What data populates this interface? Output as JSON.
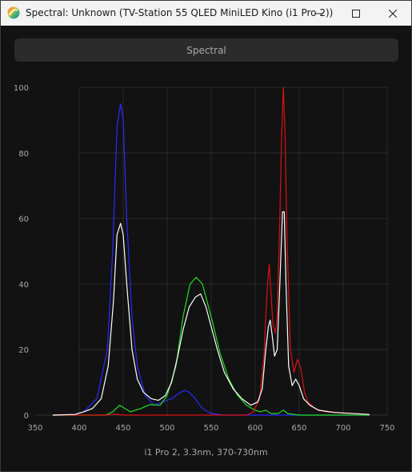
{
  "window": {
    "title": "Spectral: Unknown (TV-Station 55 QLED MiniLED Kino (i1 Pro 2))",
    "controls": [
      "minimize",
      "maximize",
      "close"
    ]
  },
  "toolbar": {
    "spectral_label": "Spectral"
  },
  "caption": "i1 Pro 2, 3.3nm, 370-730nm",
  "chart_data": {
    "type": "line",
    "xlim": [
      350,
      750
    ],
    "ylim": [
      0,
      100
    ],
    "x_ticks": [
      350,
      400,
      450,
      500,
      550,
      600,
      650,
      700,
      750
    ],
    "y_ticks": [
      0,
      20,
      40,
      60,
      80,
      100
    ],
    "grid": true,
    "series": [
      {
        "color": "#2a2aff",
        "points": [
          [
            370,
            0
          ],
          [
            395,
            0.2
          ],
          [
            405,
            1
          ],
          [
            420,
            5
          ],
          [
            432,
            20
          ],
          [
            438,
            50
          ],
          [
            443,
            88
          ],
          [
            447,
            95
          ],
          [
            450,
            90
          ],
          [
            454,
            60
          ],
          [
            460,
            30
          ],
          [
            466,
            15
          ],
          [
            475,
            6
          ],
          [
            485,
            3
          ],
          [
            495,
            4
          ],
          [
            505,
            5
          ],
          [
            515,
            7
          ],
          [
            520,
            7.5
          ],
          [
            525,
            7
          ],
          [
            532,
            5
          ],
          [
            540,
            2
          ],
          [
            550,
            0.5
          ],
          [
            565,
            0
          ],
          [
            730,
            0
          ]
        ]
      },
      {
        "color": "#22dd22",
        "points": [
          [
            370,
            0
          ],
          [
            430,
            0
          ],
          [
            438,
            1
          ],
          [
            446,
            3
          ],
          [
            452,
            2
          ],
          [
            458,
            1
          ],
          [
            470,
            2
          ],
          [
            480,
            3.2
          ],
          [
            492,
            3
          ],
          [
            500,
            6
          ],
          [
            510,
            15
          ],
          [
            518,
            30
          ],
          [
            526,
            40
          ],
          [
            533,
            42
          ],
          [
            540,
            40
          ],
          [
            550,
            30
          ],
          [
            560,
            19
          ],
          [
            570,
            11
          ],
          [
            580,
            6
          ],
          [
            590,
            3
          ],
          [
            600,
            1.5
          ],
          [
            606,
            1
          ],
          [
            612,
            1.5
          ],
          [
            618,
            0.5
          ],
          [
            626,
            0.5
          ],
          [
            632,
            1.5
          ],
          [
            637,
            0.5
          ],
          [
            650,
            0
          ],
          [
            730,
            0
          ]
        ]
      },
      {
        "color": "#dd1111",
        "points": [
          [
            370,
            0
          ],
          [
            430,
            0
          ],
          [
            440,
            0.3
          ],
          [
            450,
            0
          ],
          [
            590,
            0
          ],
          [
            598,
            1
          ],
          [
            605,
            5
          ],
          [
            610,
            18
          ],
          [
            612,
            30
          ],
          [
            614,
            40
          ],
          [
            616,
            46
          ],
          [
            618,
            37
          ],
          [
            620,
            28
          ],
          [
            623,
            25
          ],
          [
            625,
            30
          ],
          [
            628,
            60
          ],
          [
            630,
            85
          ],
          [
            632,
            100
          ],
          [
            634,
            85
          ],
          [
            636,
            55
          ],
          [
            640,
            20
          ],
          [
            644,
            13
          ],
          [
            648,
            17
          ],
          [
            652,
            14
          ],
          [
            656,
            7
          ],
          [
            660,
            4
          ],
          [
            668,
            2
          ],
          [
            680,
            1
          ],
          [
            700,
            0.6
          ],
          [
            730,
            0.2
          ]
        ]
      },
      {
        "color": "#ffffff",
        "points": [
          [
            370,
            0
          ],
          [
            395,
            0.2
          ],
          [
            405,
            1
          ],
          [
            415,
            2
          ],
          [
            425,
            5
          ],
          [
            433,
            15
          ],
          [
            439,
            35
          ],
          [
            443,
            55
          ],
          [
            447,
            58.5
          ],
          [
            450,
            55
          ],
          [
            454,
            40
          ],
          [
            460,
            20
          ],
          [
            466,
            11
          ],
          [
            473,
            7
          ],
          [
            482,
            5
          ],
          [
            490,
            4.5
          ],
          [
            498,
            6
          ],
          [
            505,
            10
          ],
          [
            512,
            18
          ],
          [
            518,
            26
          ],
          [
            525,
            33
          ],
          [
            532,
            36
          ],
          [
            538,
            37
          ],
          [
            544,
            33
          ],
          [
            550,
            27
          ],
          [
            557,
            20
          ],
          [
            565,
            13
          ],
          [
            575,
            8
          ],
          [
            585,
            5
          ],
          [
            595,
            3
          ],
          [
            603,
            4
          ],
          [
            608,
            8
          ],
          [
            612,
            20
          ],
          [
            615,
            27
          ],
          [
            617,
            29
          ],
          [
            619,
            25
          ],
          [
            622,
            18
          ],
          [
            625,
            20
          ],
          [
            628,
            40
          ],
          [
            631,
            62
          ],
          [
            633,
            62
          ],
          [
            635,
            40
          ],
          [
            638,
            15
          ],
          [
            642,
            9
          ],
          [
            646,
            11
          ],
          [
            650,
            9
          ],
          [
            655,
            5
          ],
          [
            662,
            3
          ],
          [
            672,
            1.5
          ],
          [
            690,
            0.8
          ],
          [
            730,
            0.2
          ]
        ]
      }
    ]
  }
}
